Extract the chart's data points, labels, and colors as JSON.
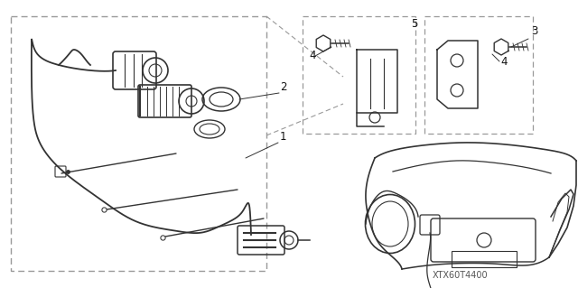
{
  "bg_color": "#ffffff",
  "line_color": "#333333",
  "dash_color": "#999999",
  "label_color": "#111111",
  "watermark": "XTX60T4400",
  "fig_width": 6.4,
  "fig_height": 3.19,
  "dpi": 100
}
